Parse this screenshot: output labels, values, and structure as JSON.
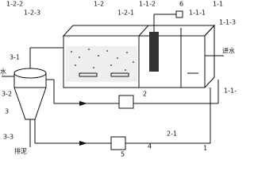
{
  "labels": [
    "1-2-2",
    "1-2-3",
    "1-2",
    "1-2-1",
    "1-1-2",
    "6",
    "1-1-1",
    "1-1",
    "1-1-3",
    "3-1",
    "水",
    "进水",
    "3-2",
    "3",
    "3-3",
    "排泥",
    "2",
    "2-1",
    "4",
    "5",
    "1",
    "1-1-"
  ]
}
